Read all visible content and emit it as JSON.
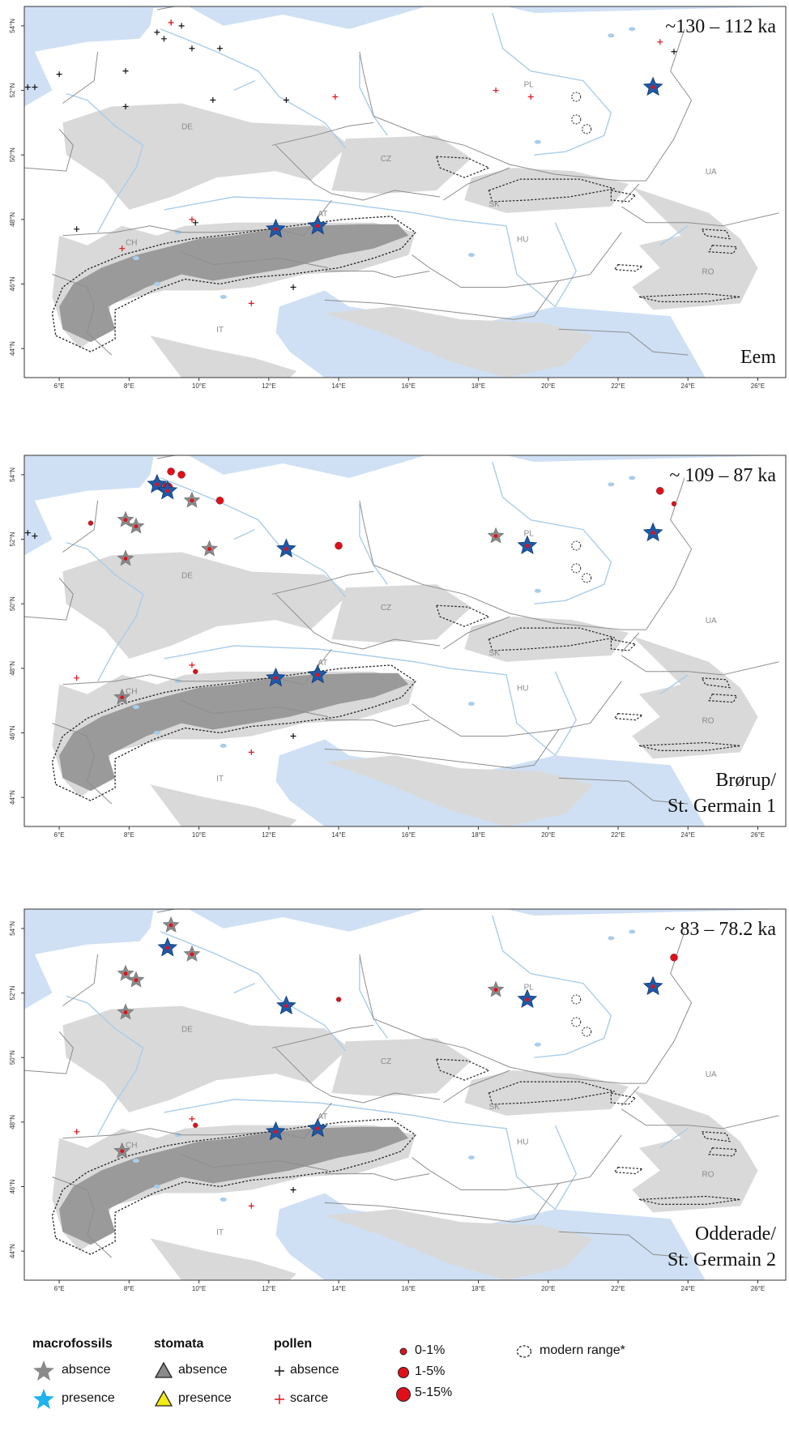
{
  "panels": [
    {
      "period": "~130 – 112 ka",
      "stage_lines": [
        "Eem"
      ]
    },
    {
      "period": "~ 109 – 87 ka",
      "stage_lines": [
        "Brørup/",
        "St. Germain 1"
      ]
    },
    {
      "period": "~ 83 – 78.2 ka",
      "stage_lines": [
        "Odderade/",
        "St. Germain 2"
      ]
    }
  ],
  "country_labels": [
    "PL",
    "DE",
    "CZ",
    "UA",
    "SK",
    "AT",
    "HU",
    "CH",
    "RO",
    "IT"
  ],
  "lat_ticks": [
    "54°N",
    "52°N",
    "50°N",
    "48°N",
    "46°N",
    "44°N"
  ],
  "lon_ticks": [
    "6°E",
    "8°E",
    "10°E",
    "12°E",
    "14°E",
    "16°E",
    "18°E",
    "20°E",
    "22°E",
    "24°E",
    "26°E"
  ],
  "legend": {
    "macrofossils": {
      "title": "macrofossils",
      "absence": "absence",
      "presence": "presence"
    },
    "stomata": {
      "title": "stomata",
      "absence": "absence",
      "presence": "presence"
    },
    "pollen": {
      "title": "pollen",
      "absence": "absence",
      "scarce": "scarce"
    },
    "pollen_pct": [
      "0-1%",
      "1-5%",
      "5-15%"
    ],
    "modern_range": "modern range*"
  },
  "colors": {
    "sea": "#cfe0f4",
    "land": "#ffffff",
    "uplands": "#d9d9d9",
    "mountains": "#9a9a9a",
    "river": "#a9cdea",
    "star_presence": "#1f5aa6",
    "star_absence": "#8a8a8a",
    "pollen_red": "#e0101b",
    "legend_star_presence": "#1fb3ee"
  },
  "sites": [
    {
      "macro_presence": [
        [
          12.2,
          47.7
        ],
        [
          13.4,
          47.8
        ],
        [
          23,
          52.1
        ]
      ],
      "macro_absence": [],
      "pollen_absence": [
        [
          5.1,
          52.1
        ],
        [
          5.3,
          52.1
        ],
        [
          6.0,
          52.5
        ],
        [
          7.9,
          52.6
        ],
        [
          8.8,
          53.8
        ],
        [
          9.0,
          53.6
        ],
        [
          9.5,
          54.0
        ],
        [
          9.2,
          54.1
        ],
        [
          9.8,
          53.3
        ],
        [
          10.6,
          53.3
        ],
        [
          7.9,
          51.5
        ],
        [
          10.4,
          51.7
        ],
        [
          12.5,
          51.7
        ],
        [
          23.6,
          53.2
        ],
        [
          6.5,
          47.7
        ],
        [
          9.9,
          47.9
        ],
        [
          12.7,
          45.9
        ]
      ],
      "pollen_scarce": [
        [
          9.2,
          54.1
        ],
        [
          23.2,
          53.5
        ],
        [
          13.9,
          51.8
        ],
        [
          18.5,
          52.0
        ],
        [
          19.5,
          51.8
        ],
        [
          9.8,
          48.0
        ],
        [
          7.8,
          47.1
        ],
        [
          11.5,
          45.4
        ]
      ],
      "pollen_small": [],
      "pollen_mid": [],
      "pollen_large": [],
      "modern_small": [
        [
          20.8,
          51.8
        ],
        [
          20.8,
          51.1
        ],
        [
          21.1,
          50.8
        ]
      ]
    },
    {
      "macro_presence": [
        [
          8.8,
          53.7
        ],
        [
          9.1,
          53.5
        ],
        [
          12.5,
          51.7
        ],
        [
          19.4,
          51.8
        ],
        [
          23,
          52.2
        ],
        [
          12.2,
          47.7
        ],
        [
          13.4,
          47.8
        ]
      ],
      "macro_absence": [
        [
          7.9,
          52.6
        ],
        [
          8.2,
          52.4
        ],
        [
          9.8,
          53.2
        ],
        [
          7.9,
          51.4
        ],
        [
          10.3,
          51.7
        ],
        [
          18.5,
          52.1
        ],
        [
          7.8,
          47.1
        ]
      ],
      "pollen_absence": [
        [
          5.1,
          52.2
        ],
        [
          5.3,
          52.1
        ],
        [
          12.7,
          45.9
        ]
      ],
      "pollen_scarce": [
        [
          6.5,
          47.7
        ],
        [
          9.8,
          48.1
        ],
        [
          11.5,
          45.4
        ]
      ],
      "pollen_small": [
        [
          6.9,
          52.5
        ],
        [
          23.6,
          53.1
        ],
        [
          9.9,
          47.9
        ]
      ],
      "pollen_mid": [
        [
          9.2,
          54.1
        ],
        [
          9.5,
          54.0
        ],
        [
          10.6,
          53.2
        ],
        [
          14,
          51.8
        ],
        [
          23.2,
          53.5
        ]
      ],
      "pollen_large": [
        [
          8.8,
          53.7
        ],
        [
          9.1,
          53.6
        ]
      ],
      "modern_small": [
        [
          20.8,
          51.8
        ],
        [
          20.8,
          51.1
        ],
        [
          21.1,
          50.8
        ]
      ]
    },
    {
      "macro_presence": [
        [
          9.1,
          53.4
        ],
        [
          12.5,
          51.6
        ],
        [
          19.4,
          51.8
        ],
        [
          23,
          52.2
        ],
        [
          12.2,
          47.7
        ],
        [
          13.4,
          47.8
        ]
      ],
      "macro_absence": [
        [
          9.2,
          54.1
        ],
        [
          9.8,
          53.2
        ],
        [
          7.9,
          52.6
        ],
        [
          8.2,
          52.4
        ],
        [
          7.9,
          51.4
        ],
        [
          18.5,
          52.1
        ],
        [
          7.8,
          47.1
        ]
      ],
      "pollen_absence": [
        [
          12.7,
          45.9
        ]
      ],
      "pollen_scarce": [
        [
          6.5,
          47.7
        ],
        [
          9.8,
          48.1
        ],
        [
          11.5,
          45.4
        ]
      ],
      "pollen_small": [
        [
          14,
          51.8
        ],
        [
          9.9,
          47.9
        ]
      ],
      "pollen_mid": [
        [
          23.6,
          53.1
        ]
      ],
      "pollen_large": [],
      "modern_small": [
        [
          20.8,
          51.8
        ],
        [
          20.8,
          51.1
        ],
        [
          21.1,
          50.8
        ]
      ]
    }
  ]
}
